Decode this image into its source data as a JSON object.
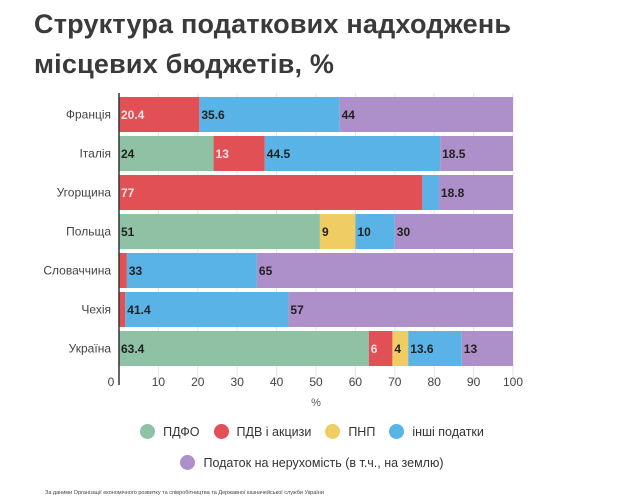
{
  "chart_data": {
    "type": "bar",
    "orientation": "horizontal",
    "stacked": true,
    "title": "Структура податкових надходжень місцевих бюджетів, %",
    "xlabel": "%",
    "ylabel": "",
    "xlim": [
      0,
      100
    ],
    "xticks": [
      "0",
      "10",
      "20",
      "30",
      "40",
      "50",
      "60",
      "70",
      "80",
      "90",
      "100"
    ],
    "grid": true,
    "legend_position": "bottom",
    "categories": [
      "Франція",
      "Італія",
      "Угорщина",
      "Польща",
      "Словаччина",
      "Чехія",
      "Україна"
    ],
    "series": [
      {
        "name": "ПДФО",
        "color": "#8fc2a4",
        "values": [
          0,
          24,
          0,
          51,
          0,
          0,
          63.4
        ],
        "labels": [
          "",
          "24",
          "",
          "51",
          "",
          "",
          "63.4"
        ]
      },
      {
        "name": "ПДВ і акцизи",
        "color": "#e05055",
        "values": [
          20.4,
          13,
          77,
          0,
          2,
          1.6,
          6
        ],
        "labels": [
          "20.4",
          "13",
          "77",
          "",
          "",
          "",
          "6"
        ]
      },
      {
        "name": "ПНП",
        "color": "#f0cd62",
        "values": [
          0,
          0,
          0,
          9,
          0,
          0,
          4
        ],
        "labels": [
          "",
          "",
          "",
          "9",
          "",
          "",
          "4"
        ]
      },
      {
        "name": "інші податки",
        "color": "#5ab3e6",
        "values": [
          35.6,
          44.5,
          4.2,
          10,
          33,
          41.4,
          13.6
        ],
        "labels": [
          "35.6",
          "44.5",
          "",
          "10",
          "33",
          "41.4",
          "13.6"
        ]
      },
      {
        "name": "Податок на нерухомість (в т.ч., на землю)",
        "color": "#ad8fc9",
        "values": [
          44,
          18.5,
          18.8,
          30,
          65,
          57,
          13
        ],
        "labels": [
          "44",
          "18.5",
          "18.8",
          "30",
          "65",
          "57",
          "13"
        ]
      }
    ]
  },
  "title_lines": [
    "Структура податкових надходжень",
    "місцевих бюджетів, %"
  ],
  "footnote": "За даними Організації економічного розвитку та співробітництва та Державної казначейської служби України"
}
